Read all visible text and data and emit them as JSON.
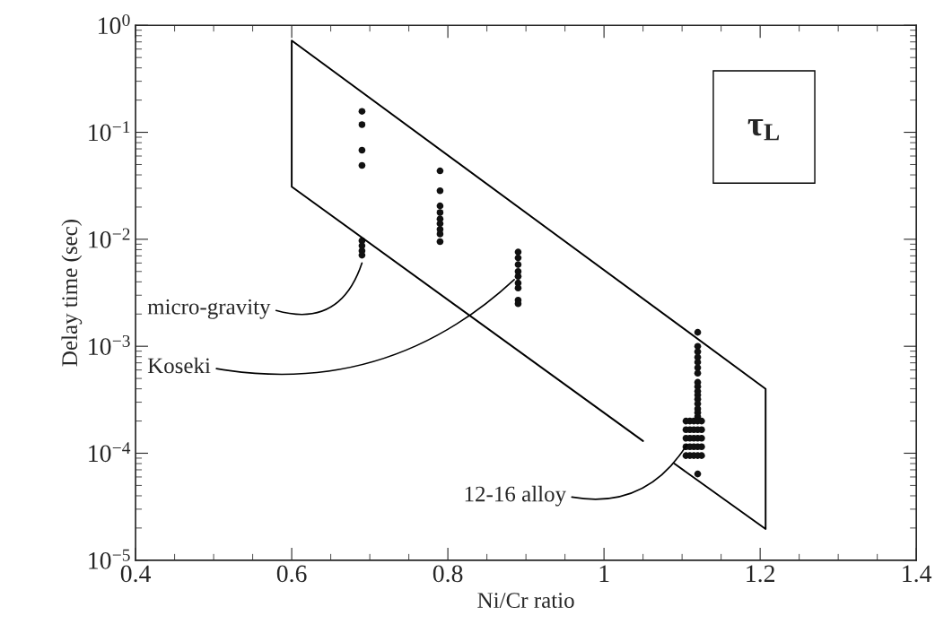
{
  "chart_data": {
    "type": "scatter",
    "xlabel": "Ni/Cr ratio",
    "ylabel": "Delay time (sec)",
    "series": [
      {
        "color": "#111111",
        "marker": "circle",
        "x": [
          0.69,
          0.69,
          0.69,
          0.69,
          0.69,
          0.69,
          0.69,
          0.69,
          0.79,
          0.79,
          0.79,
          0.79,
          0.79,
          0.79,
          0.79,
          0.79,
          0.79,
          0.89,
          0.89,
          0.89,
          0.89,
          0.89,
          0.89,
          0.89,
          0.89,
          0.89,
          1.12,
          1.12,
          1.12,
          1.12,
          1.12,
          1.12,
          1.12,
          1.12,
          1.12,
          1.12,
          1.12,
          1.12,
          1.12,
          1.12,
          1.12,
          1.12,
          1.105,
          1.11,
          1.115,
          1.12,
          1.125,
          1.105,
          1.11,
          1.115,
          1.12,
          1.125,
          1.105,
          1.11,
          1.115,
          1.12,
          1.125,
          1.105,
          1.11,
          1.115,
          1.12,
          1.125,
          1.105,
          1.11,
          1.115,
          1.12,
          1.125,
          1.12
        ],
        "values": [
          0.157,
          0.118,
          0.068,
          0.049,
          0.0097,
          0.0087,
          0.0078,
          0.0071,
          0.0436,
          0.0284,
          0.0205,
          0.0178,
          0.0155,
          0.014,
          0.0124,
          0.0112,
          0.0095,
          0.0076,
          0.0067,
          0.0058,
          0.005,
          0.0045,
          0.0039,
          0.0035,
          0.0027,
          0.0025,
          0.00135,
          0.001,
          0.00089,
          0.00079,
          0.00071,
          0.00063,
          0.00056,
          0.00046,
          0.00042,
          0.00038,
          0.00035,
          0.00032,
          0.00029,
          0.00026,
          0.00024,
          0.00022,
          0.0002,
          0.0002,
          0.0002,
          0.0002,
          0.0002,
          0.000166,
          0.000166,
          0.000166,
          0.000166,
          0.000166,
          0.000138,
          0.000138,
          0.000138,
          0.000138,
          0.000138,
          0.000115,
          0.000115,
          0.000115,
          0.000115,
          0.000115,
          9.5e-05,
          9.5e-05,
          9.5e-05,
          9.5e-05,
          9.5e-05,
          6.4e-05
        ]
      },
      {
        "type": "line",
        "color": "#000000",
        "line_style": "solid",
        "x": [
          1.09,
          1.207,
          1.207,
          0.6,
          0.6,
          1.05
        ],
        "values": [
          8e-05,
          1.96e-05,
          0.0004,
          0.72,
          0.031,
          0.00013
        ]
      }
    ],
    "xlim": [
      0.4,
      1.4
    ],
    "xticks": [
      0.4,
      0.6,
      0.8,
      1,
      1.2,
      1.4
    ],
    "ylim": [
      1e-05,
      1
    ],
    "log": "y",
    "yticks": [
      {
        "value": 1e-05,
        "label": "10$^{−5}$"
      },
      {
        "value": 0.0001,
        "label": "10$^{−4}$"
      },
      {
        "value": 0.001,
        "label": "10$^{−3}$"
      },
      {
        "value": 0.01,
        "label": "10$^{−2}$"
      },
      {
        "value": 0.1,
        "label": "10$^{−1}$"
      },
      {
        "value": 1,
        "label": "10$^{0}$"
      }
    ],
    "grid": false,
    "legend": false,
    "annotations": [
      {
        "text": "micro-gravity",
        "x": 0.69,
        "y": 0.006
      },
      {
        "text": "Koseki",
        "x": 0.885,
        "y": 0.0042
      },
      {
        "text": "12-16 alloy",
        "x": 1.106,
        "y": 0.00012
      },
      "τ$_{L}$"
    ]
  }
}
